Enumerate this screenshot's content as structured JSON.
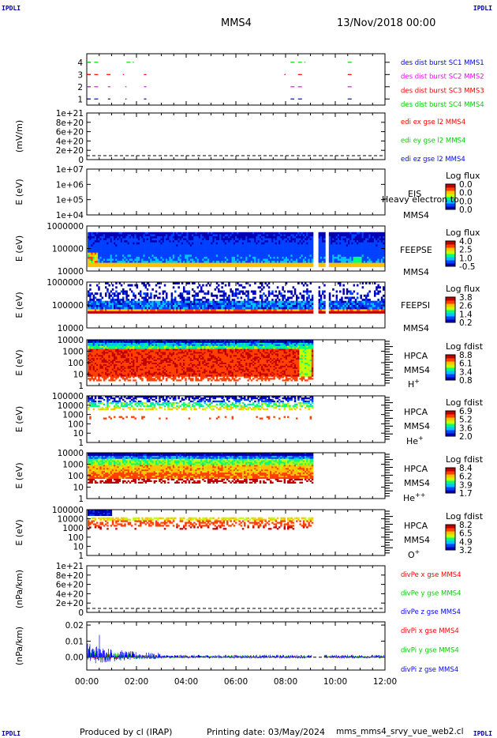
{
  "corners": {
    "tl": "IPDLI",
    "tr": "IPDLI",
    "bl": "IPDLI",
    "br": "IPDLI"
  },
  "header": {
    "spacecraft": "MMS4",
    "date": "13/Nov/2018 00:00"
  },
  "footer": {
    "produced": "Produced by cl (IRAP)",
    "printing": "Printing date: 03/May/2024",
    "script": "mms_mms4_srvy_vue_web2.cl"
  },
  "colors": {
    "red": "#ff0000",
    "magenta": "#ff00ff",
    "green": "#00d000",
    "blue": "#0000ff",
    "spectrogram_scale": [
      "#0000b0",
      "#0040ff",
      "#00c0ff",
      "#00ff80",
      "#c0ff00",
      "#ffc000",
      "#ff4000",
      "#c00000"
    ]
  },
  "chart_data": [
    {
      "id": "burst",
      "type": "line",
      "yticks": [
        "4",
        "3",
        "2",
        "1"
      ],
      "legend": [
        {
          "text": "des dist burst SC1 MMS1",
          "color": "blue"
        },
        {
          "text": "des dist burst SC2 MMS2",
          "color": "magenta"
        },
        {
          "text": "des dist burst SC3 MMS3",
          "color": "red"
        },
        {
          "text": "des dist burst SC4 MMS4",
          "color": "green"
        }
      ],
      "series": [
        {
          "y": 4,
          "color": "green",
          "intervals": [
            [
              0.0,
              0.15
            ],
            [
              0.3,
              0.5
            ],
            [
              1.6,
              1.9
            ],
            [
              8.2,
              8.45
            ],
            [
              8.5,
              8.8
            ],
            [
              10.5,
              10.7
            ]
          ]
        },
        {
          "y": 3,
          "color": "red",
          "intervals": [
            [
              0.0,
              0.15
            ],
            [
              0.3,
              0.5
            ],
            [
              0.8,
              0.95
            ],
            [
              1.45,
              1.5
            ],
            [
              2.3,
              2.4
            ],
            [
              7.95,
              8.0
            ],
            [
              8.5,
              8.7
            ],
            [
              10.5,
              10.7
            ]
          ]
        },
        {
          "y": 2,
          "color": "magenta",
          "intervals": [
            [
              0.0,
              0.15
            ],
            [
              0.3,
              0.5
            ],
            [
              0.85,
              0.95
            ],
            [
              1.55,
              1.6
            ],
            [
              2.3,
              2.4
            ],
            [
              8.2,
              8.35
            ],
            [
              8.5,
              8.7
            ],
            [
              10.5,
              10.7
            ]
          ]
        },
        {
          "y": 1,
          "color": "blue",
          "intervals": [
            [
              0.0,
              0.15
            ],
            [
              0.3,
              0.5
            ],
            [
              0.85,
              0.95
            ],
            [
              1.55,
              1.6
            ],
            [
              2.3,
              2.4
            ],
            [
              8.2,
              8.35
            ],
            [
              8.5,
              8.7
            ],
            [
              10.5,
              10.7
            ]
          ]
        }
      ]
    },
    {
      "id": "edi",
      "type": "line",
      "ylabel": "(mV/m)",
      "yticks": [
        "1e+21",
        "8e+20",
        "6e+20",
        "4e+20",
        "2e+20",
        "0"
      ],
      "legend": [
        {
          "text": "edi ex gse l2 MMS4",
          "color": "red"
        },
        {
          "text": "edi ey gse l2 MMS4",
          "color": "green"
        },
        {
          "text": "edi ez gse l2 MMS4",
          "color": "blue"
        }
      ]
    },
    {
      "id": "eis",
      "type": "heatmap",
      "ylabel": "E (eV)",
      "yticks": [
        "1e+07",
        "1e+06",
        "1e+05",
        "1e+04"
      ],
      "labels": [
        "EIS",
        "Heavy electron to",
        "MMS4"
      ],
      "colorbar": {
        "title": "Log flux",
        "ticks": [
          "0.0",
          "0.0",
          "0.0",
          "0.0"
        ]
      }
    },
    {
      "id": "feepse",
      "type": "heatmap",
      "ylabel": "E (eV)",
      "yticks": [
        "1000000",
        "100000",
        "10000"
      ],
      "labels": [
        "FEEPSE",
        "MMS4"
      ],
      "colorbar": {
        "title": "Log flux",
        "ticks": [
          "4.0",
          "2.5",
          "1.0",
          "-0.5"
        ]
      }
    },
    {
      "id": "feepsi",
      "type": "heatmap",
      "ylabel": "E (eV)",
      "yticks": [
        "1000000",
        "100000",
        "10000"
      ],
      "labels": [
        "FEEPSI",
        "MMS4"
      ],
      "colorbar": {
        "title": "Log flux",
        "ticks": [
          "3.8",
          "2.6",
          "1.4",
          "0.2"
        ]
      }
    },
    {
      "id": "hpca_h",
      "type": "heatmap",
      "ylabel": "E (eV)",
      "yticks": [
        "10000",
        "1000",
        "100",
        "10",
        "1"
      ],
      "labels": [
        "HPCA",
        "MMS4",
        "H+"
      ],
      "colorbar": {
        "title": "Log fdist",
        "ticks": [
          "8.8",
          "6.1",
          "3.4",
          "0.8"
        ]
      }
    },
    {
      "id": "hpca_he",
      "type": "heatmap",
      "ylabel": "E (eV)",
      "yticks": [
        "100000",
        "10000",
        "1000",
        "100",
        "10",
        "1"
      ],
      "labels": [
        "HPCA",
        "MMS4",
        "He+"
      ],
      "colorbar": {
        "title": "Log fdist",
        "ticks": [
          "6.9",
          "5.2",
          "3.6",
          "2.0"
        ]
      }
    },
    {
      "id": "hpca_he2",
      "type": "heatmap",
      "ylabel": "E (eV)",
      "yticks": [
        "10000",
        "1000",
        "100",
        "10",
        "1"
      ],
      "labels": [
        "HPCA",
        "MMS4",
        "He++"
      ],
      "colorbar": {
        "title": "Log fdist",
        "ticks": [
          "8.4",
          "6.2",
          "3.9",
          "1.7"
        ]
      }
    },
    {
      "id": "hpca_o",
      "type": "heatmap",
      "ylabel": "E (eV)",
      "yticks": [
        "100000",
        "10000",
        "1000",
        "100",
        "10",
        "1"
      ],
      "labels": [
        "HPCA",
        "MMS4",
        "O+"
      ],
      "colorbar": {
        "title": "Log fdist",
        "ticks": [
          "8.2",
          "6.5",
          "4.9",
          "3.2"
        ]
      }
    },
    {
      "id": "divpe",
      "type": "line",
      "ylabel": "(nPa/km)",
      "yticks": [
        "1e+21",
        "8e+20",
        "6e+20",
        "4e+20",
        "2e+20",
        "0"
      ],
      "legend": [
        {
          "text": "divPe x gse MMS4",
          "color": "red"
        },
        {
          "text": "divPe y gse MMS4",
          "color": "green"
        },
        {
          "text": "divPe z gse MMS4",
          "color": "blue"
        }
      ]
    },
    {
      "id": "divpi",
      "type": "line",
      "ylabel": "(nPa/km)",
      "yticks": [
        "0.02",
        "0.01",
        "0.00"
      ],
      "ylim": [
        -0.008,
        0.022
      ],
      "legend": [
        {
          "text": "divPi x gse MMS4",
          "color": "red"
        },
        {
          "text": "divPi y gse MMS4",
          "color": "green"
        },
        {
          "text": "divPi z gse MMS4",
          "color": "blue"
        }
      ]
    }
  ],
  "xaxis": {
    "ticks": [
      "00:00",
      "02:00",
      "04:00",
      "06:00",
      "08:00",
      "10:00",
      "12:00"
    ],
    "range_hours": [
      0,
      12
    ]
  }
}
